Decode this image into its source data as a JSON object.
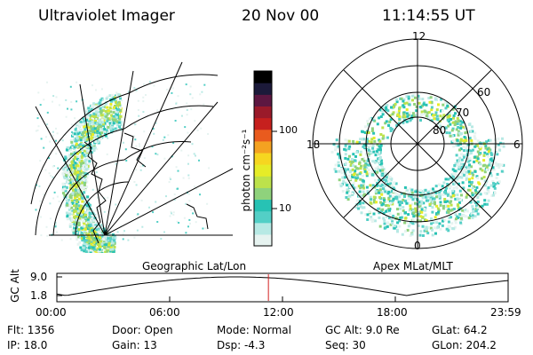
{
  "header": {
    "instrument": "Ultraviolet Imager",
    "date": "20 Nov 00",
    "time": "11:14:55 UT"
  },
  "colorbar": {
    "unit_label": "photon cm⁻²s⁻¹",
    "ticks": [
      "100",
      "10"
    ],
    "colors": [
      "#e6f3f0",
      "#b7e9e4",
      "#53cfc6",
      "#27c2b4",
      "#8fd27c",
      "#bde24b",
      "#e6ec28",
      "#f6d620",
      "#f4a221",
      "#e95b1e",
      "#c6201e",
      "#9a1a2a",
      "#5d1741",
      "#1c1a3a",
      "#000000"
    ]
  },
  "left_panel": {
    "caption": "Geographic Lat/Lon"
  },
  "right_panel": {
    "caption": "Apex MLat/MLT",
    "mlt_labels": {
      "top": "12",
      "left": "18",
      "right": "6",
      "bottom": "0"
    },
    "lat_labels": [
      "60",
      "70",
      "80"
    ]
  },
  "orbit_strip": {
    "axis_label": "GC Alt",
    "y_ticks": [
      "9.0",
      "1.8"
    ],
    "x_ticks": [
      "00:00",
      "06:00",
      "12:00",
      "18:00",
      "23:59"
    ],
    "current_time_fraction": 0.4688,
    "marker_color": "#d42020"
  },
  "status": {
    "flt": "Flt:  1356",
    "ip": "IP: 18.0",
    "door": "Door: Open",
    "gain": "Gain: 13",
    "mode": "Mode: Normal",
    "dsp": "Dsp:    -4.3",
    "gc_alt": "GC Alt: 9.0 Re",
    "seq": "Seq: 30",
    "glat": "GLat:  64.2",
    "glon": "GLon: 204.2"
  }
}
